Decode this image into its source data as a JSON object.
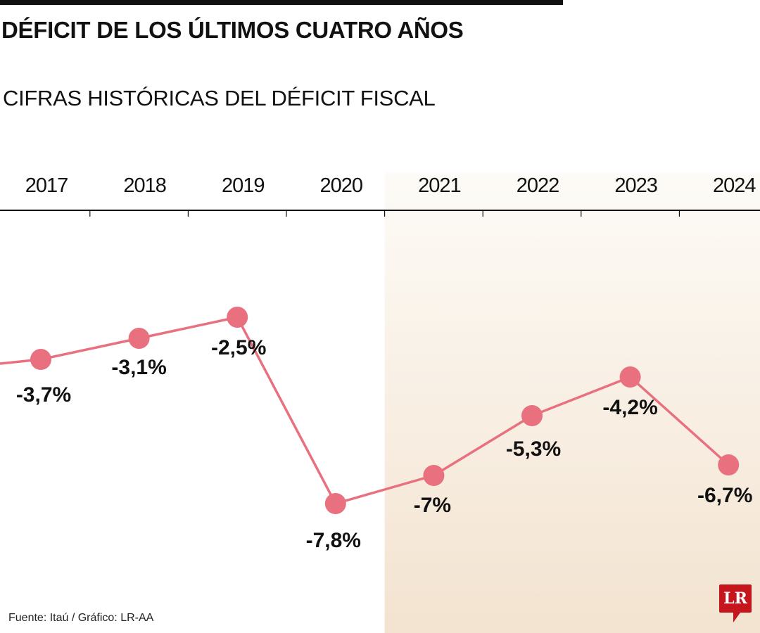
{
  "title": "DÉFICIT DE LOS ÚLTIMOS CUATRO AÑOS",
  "subtitle": "CIFRAS HISTÓRICAS DEL DÉFICIT FISCAL",
  "source": "Fuente: Itaú / Gráfico: LR-AA",
  "logo": "LR",
  "colors": {
    "line": "#e8707f",
    "shade_top": "#fdfbf7",
    "shade_bottom": "#f3e3d0",
    "logo": "#c4161c"
  },
  "chart_data": {
    "type": "line",
    "categories": [
      "2017",
      "2018",
      "2019",
      "2020",
      "2021",
      "2022",
      "2023",
      "2024"
    ],
    "values": [
      -3.7,
      -3.1,
      -2.5,
      -7.8,
      -7.0,
      -5.3,
      -4.2,
      -6.7
    ],
    "data_labels": [
      "-3,7%",
      "-3,1%",
      "-2,5%",
      "-7,8%",
      "-7%",
      "-5,3%",
      "-4,2%",
      "-6,7%"
    ],
    "shaded_range": [
      "2021",
      "2024"
    ],
    "grid": false,
    "legend": "none",
    "axis_position": "top"
  }
}
